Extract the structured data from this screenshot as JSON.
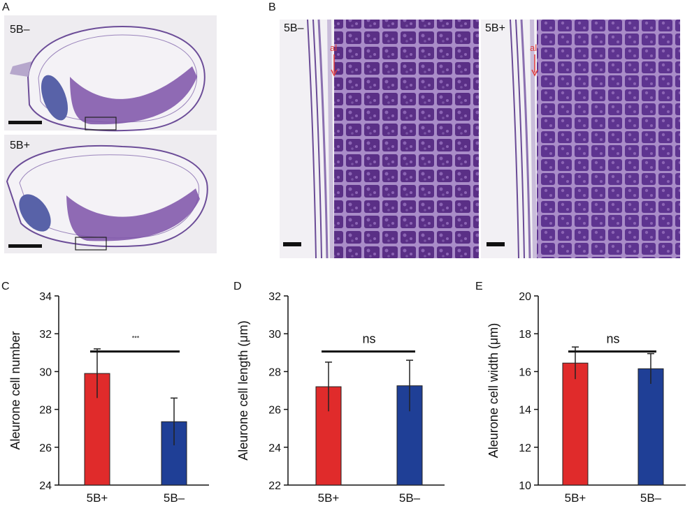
{
  "panels": {
    "A": {
      "letter": "A",
      "top_label": "5B–",
      "bottom_label": "5B+"
    },
    "B": {
      "letter": "B",
      "left_label": "5B–",
      "right_label": "5B+",
      "al_left": "al",
      "al_right": "al"
    }
  },
  "colors": {
    "bar_5Bplus": "#e02b2b",
    "bar_5Bminus": "#1f3f96",
    "tissue_bg": "#efedf1",
    "stain_dark": "#5a2f86",
    "stain_mid": "#8d6bb5",
    "annot_red": "#e23b3b"
  },
  "chart_data": [
    {
      "panel": "C",
      "type": "bar",
      "title": "",
      "categories": [
        "5B+",
        "5B–"
      ],
      "values": [
        29.9,
        27.35
      ],
      "errors": [
        1.3,
        1.25
      ],
      "ylabel": "Aleurone cell number",
      "ylim": [
        24,
        34
      ],
      "yticks": [
        "24",
        "26",
        "28",
        "30",
        "32",
        "34"
      ],
      "significance": "***",
      "grid": false
    },
    {
      "panel": "D",
      "type": "bar",
      "title": "",
      "categories": [
        "5B+",
        "5B–"
      ],
      "values": [
        27.2,
        27.25
      ],
      "errors": [
        1.3,
        1.35
      ],
      "ylabel": "Aleurone cell length (μm)",
      "ylim": [
        22,
        32
      ],
      "yticks": [
        "22",
        "24",
        "26",
        "28",
        "30",
        "32"
      ],
      "significance": "ns",
      "grid": false
    },
    {
      "panel": "E",
      "type": "bar",
      "title": "",
      "categories": [
        "5B+",
        "5B–"
      ],
      "values": [
        16.45,
        16.15
      ],
      "errors": [
        0.85,
        0.8
      ],
      "ylabel": "Aleurone cell width (μm)",
      "ylim": [
        10,
        20
      ],
      "yticks": [
        "10",
        "12",
        "14",
        "16",
        "18",
        "20"
      ],
      "significance": "ns",
      "grid": false
    }
  ]
}
